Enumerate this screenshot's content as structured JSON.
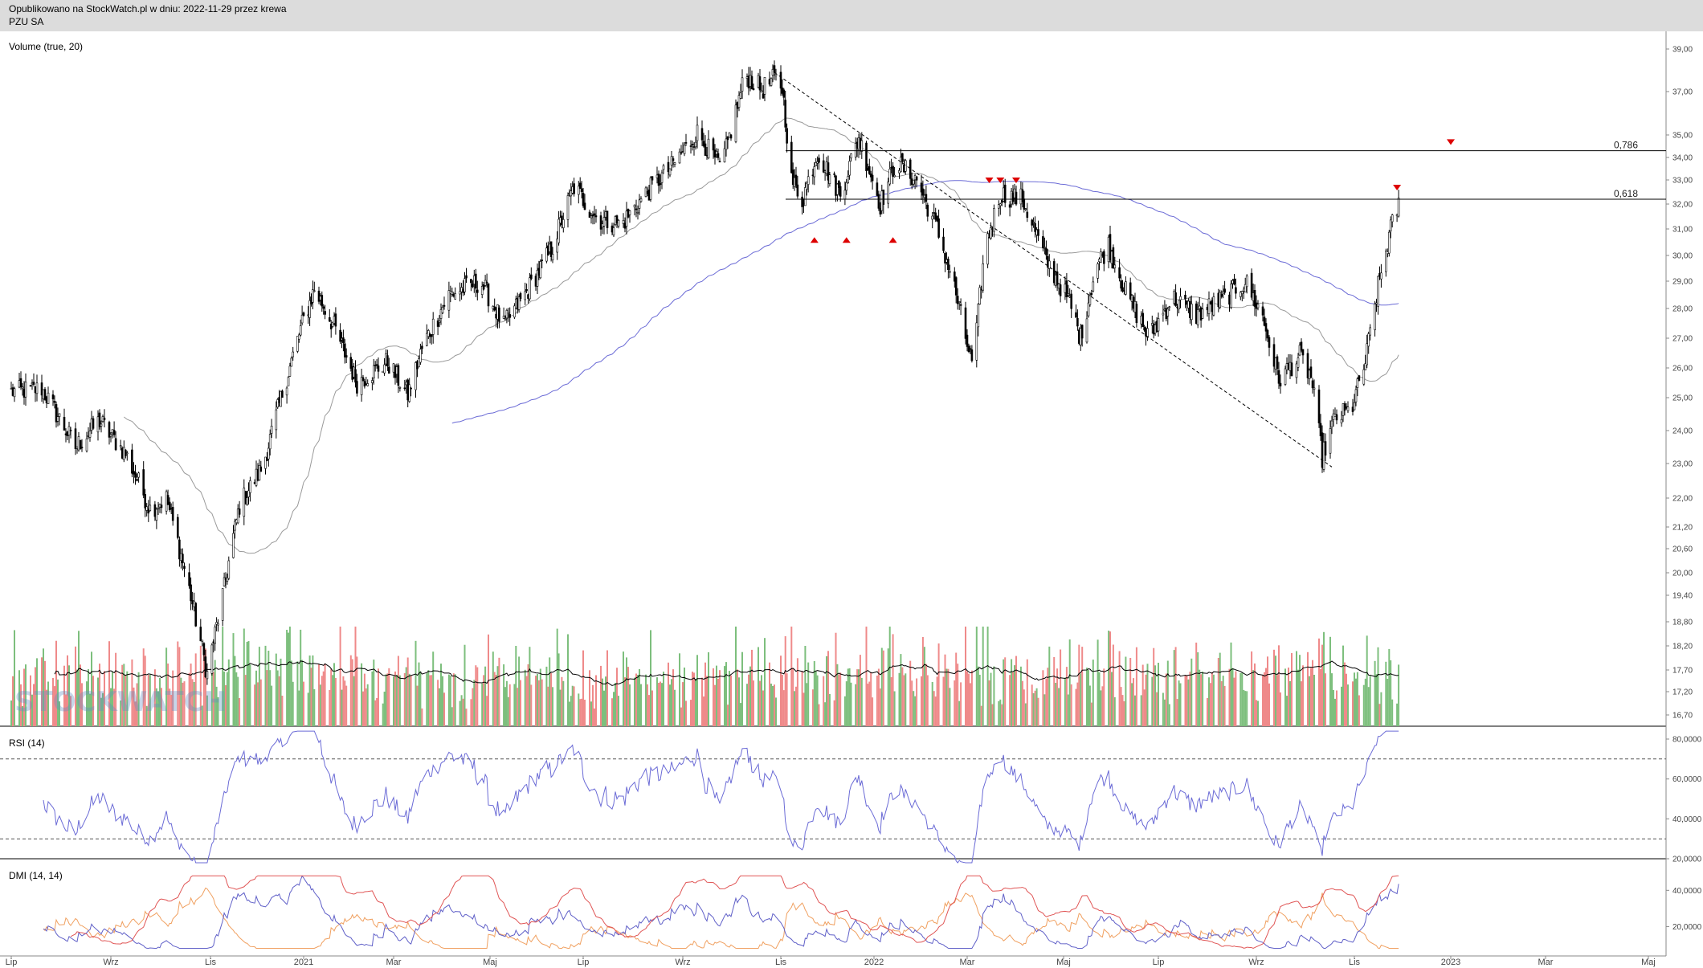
{
  "header": {
    "published": "Opublikowano na StockWatch.pl w dniu: 2022-11-29 przez krewa",
    "ticker": "PZU SA"
  },
  "watermark": "STOCKWATCH",
  "colors": {
    "up_volume": "#7dbf7d",
    "down_volume": "#ef8a8a",
    "price": "#000000",
    "sma200": "#6b6bd6",
    "sma50": "#9a9a9a",
    "rsi": "#6b6bd6",
    "dmi_adx": "#e05555",
    "dmi_plus": "#6060c8",
    "dmi_minus": "#f0a060",
    "markers": "#dd0000"
  },
  "chart_data": [
    {
      "panel": "price",
      "type": "candlestick",
      "title": "Volume (true, 20)",
      "y_scale": "log",
      "y_ticks": [
        "39,00",
        "37,00",
        "35,00",
        "34,00",
        "33,00",
        "32,00",
        "31,00",
        "30,00",
        "29,00",
        "28,00",
        "27,00",
        "26,00",
        "25,00",
        "24,00",
        "23,00",
        "22,00",
        "21,20",
        "20,60",
        "20,00",
        "19,40",
        "18,80",
        "18,20",
        "17,70",
        "17,20",
        "16,70"
      ],
      "y_tick_values": [
        39,
        37,
        35,
        34,
        33,
        32,
        31,
        30,
        29,
        28,
        27,
        26,
        25,
        24,
        23,
        22,
        21.2,
        20.6,
        20,
        19.4,
        18.8,
        18.2,
        17.7,
        17.2,
        16.7
      ],
      "x_ticks": [
        "Lip",
        "Wrz",
        "Lis",
        "2021",
        "Mar",
        "Maj",
        "Lip",
        "Wrz",
        "Lis",
        "2022",
        "Mar",
        "Maj",
        "Lip",
        "Wrz",
        "Lis",
        "2023",
        "Mar",
        "Maj"
      ],
      "x_tick_dates": [
        "2020-07-01",
        "2020-09-01",
        "2020-11-01",
        "2021-01-01",
        "2021-03-01",
        "2021-05-01",
        "2021-07-01",
        "2021-09-01",
        "2021-11-01",
        "2022-01-01",
        "2022-03-01",
        "2022-05-01",
        "2022-07-01",
        "2022-09-01",
        "2022-11-01",
        "2023-01-01",
        "2023-03-01",
        "2023-05-01"
      ],
      "close_anchors": [
        {
          "date": "2020-07-01",
          "close": 25.2
        },
        {
          "date": "2020-07-20",
          "close": 25.3
        },
        {
          "date": "2020-08-10",
          "close": 23.5
        },
        {
          "date": "2020-08-25",
          "close": 24.3
        },
        {
          "date": "2020-09-10",
          "close": 23.3
        },
        {
          "date": "2020-09-25",
          "close": 21.7
        },
        {
          "date": "2020-10-05",
          "close": 22.0
        },
        {
          "date": "2020-10-16",
          "close": 20.1
        },
        {
          "date": "2020-10-30",
          "close": 17.6
        },
        {
          "date": "2020-11-10",
          "close": 19.6
        },
        {
          "date": "2020-11-20",
          "close": 21.8
        },
        {
          "date": "2020-12-05",
          "close": 22.9
        },
        {
          "date": "2020-12-15",
          "close": 24.6
        },
        {
          "date": "2020-12-30",
          "close": 27.3
        },
        {
          "date": "2021-01-08",
          "close": 28.7
        },
        {
          "date": "2021-01-20",
          "close": 27.5
        },
        {
          "date": "2021-02-05",
          "close": 25.5
        },
        {
          "date": "2021-02-25",
          "close": 26.2
        },
        {
          "date": "2021-03-10",
          "close": 25.1
        },
        {
          "date": "2021-03-20",
          "close": 26.8
        },
        {
          "date": "2021-04-05",
          "close": 28.5
        },
        {
          "date": "2021-04-25",
          "close": 29.0
        },
        {
          "date": "2021-05-10",
          "close": 27.4
        },
        {
          "date": "2021-05-25",
          "close": 28.6
        },
        {
          "date": "2021-06-10",
          "close": 30.2
        },
        {
          "date": "2021-06-25",
          "close": 32.7
        },
        {
          "date": "2021-07-10",
          "close": 31.4
        },
        {
          "date": "2021-07-25",
          "close": 31.2
        },
        {
          "date": "2021-08-10",
          "close": 32.5
        },
        {
          "date": "2021-08-25",
          "close": 33.6
        },
        {
          "date": "2021-09-10",
          "close": 35.1
        },
        {
          "date": "2021-09-25",
          "close": 33.5
        },
        {
          "date": "2021-10-10",
          "close": 37.8
        },
        {
          "date": "2021-10-20",
          "close": 37.1
        },
        {
          "date": "2021-10-28",
          "close": 37.6
        },
        {
          "date": "2021-11-02",
          "close": 37.2
        },
        {
          "date": "2021-11-08",
          "close": 33.0
        },
        {
          "date": "2021-11-15",
          "close": 32.2
        },
        {
          "date": "2021-11-25",
          "close": 34.2
        },
        {
          "date": "2021-12-10",
          "close": 32.4
        },
        {
          "date": "2021-12-22",
          "close": 34.9
        },
        {
          "date": "2022-01-05",
          "close": 32.0
        },
        {
          "date": "2022-01-15",
          "close": 33.8
        },
        {
          "date": "2022-01-28",
          "close": 33.0
        },
        {
          "date": "2022-02-10",
          "close": 31.0
        },
        {
          "date": "2022-02-20",
          "close": 29.0
        },
        {
          "date": "2022-02-28",
          "close": 27.0
        },
        {
          "date": "2022-03-05",
          "close": 26.0
        },
        {
          "date": "2022-03-12",
          "close": 30.2
        },
        {
          "date": "2022-03-22",
          "close": 32.4
        },
        {
          "date": "2022-04-05",
          "close": 32.2
        },
        {
          "date": "2022-04-20",
          "close": 29.8
        },
        {
          "date": "2022-05-05",
          "close": 28.2
        },
        {
          "date": "2022-05-12",
          "close": 27.0
        },
        {
          "date": "2022-05-22",
          "close": 29.6
        },
        {
          "date": "2022-05-30",
          "close": 30.4
        },
        {
          "date": "2022-06-10",
          "close": 28.6
        },
        {
          "date": "2022-06-25",
          "close": 27.0
        },
        {
          "date": "2022-07-10",
          "close": 28.4
        },
        {
          "date": "2022-07-25",
          "close": 27.8
        },
        {
          "date": "2022-08-10",
          "close": 28.3
        },
        {
          "date": "2022-08-25",
          "close": 29.0
        },
        {
          "date": "2022-09-05",
          "close": 27.7
        },
        {
          "date": "2022-09-15",
          "close": 25.6
        },
        {
          "date": "2022-09-28",
          "close": 26.4
        },
        {
          "date": "2022-10-05",
          "close": 25.7
        },
        {
          "date": "2022-10-12",
          "close": 23.2
        },
        {
          "date": "2022-10-20",
          "close": 24.4
        },
        {
          "date": "2022-10-30",
          "close": 24.6
        },
        {
          "date": "2022-11-08",
          "close": 26.2
        },
        {
          "date": "2022-11-16",
          "close": 28.8
        },
        {
          "date": "2022-11-24",
          "close": 31.0
        },
        {
          "date": "2022-11-29",
          "close": 32.0
        }
      ],
      "fibonacci_levels": [
        {
          "label": "0,786",
          "value": 34.3
        },
        {
          "label": "0,618",
          "value": 32.2
        }
      ],
      "trendline": {
        "from": {
          "date": "2021-10-28",
          "price": 37.9
        },
        "to": {
          "date": "2022-10-18",
          "price": 22.9
        }
      },
      "marker_down_dates": [
        "2022-03-15",
        "2022-03-22",
        "2022-04-01",
        "2022-11-28",
        "2023-01-01"
      ],
      "marker_down_prices": [
        33.0,
        33.0,
        33.0,
        32.7,
        34.7
      ],
      "marker_up_dates": [
        "2021-11-23",
        "2021-12-14",
        "2022-01-13"
      ],
      "marker_up_prices": [
        30.6,
        30.6,
        30.6
      ],
      "last_date": "2022-11-29"
    },
    {
      "panel": "rsi",
      "type": "line",
      "title": "RSI (14)",
      "y_ticks": [
        "80,0000",
        "60,0000",
        "40,0000",
        "20,0000"
      ],
      "y_tick_values": [
        80,
        60,
        40,
        20
      ],
      "reference_levels": [
        70,
        30
      ]
    },
    {
      "panel": "dmi",
      "type": "line",
      "title": "DMI (14, 14)",
      "y_ticks": [
        "40,0000",
        "20,0000"
      ],
      "y_tick_values": [
        40,
        20
      ]
    }
  ]
}
